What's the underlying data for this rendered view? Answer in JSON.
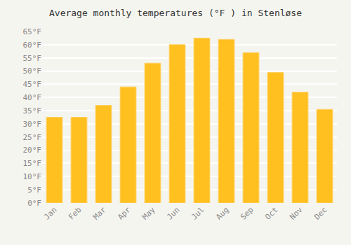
{
  "chart_data": {
    "type": "bar",
    "title": "Average monthly temperatures (°F ) in Stenløse",
    "categories": [
      "Jan",
      "Feb",
      "Mar",
      "Apr",
      "May",
      "Jun",
      "Jul",
      "Aug",
      "Sep",
      "Oct",
      "Nov",
      "Dec"
    ],
    "values": [
      32.5,
      32.5,
      37.0,
      44.0,
      53.0,
      60.0,
      62.5,
      62.0,
      57.0,
      49.5,
      42.0,
      35.5
    ],
    "color": "#FFC020",
    "ylim": [
      0,
      65
    ],
    "yticks": [
      {
        "value": 0,
        "label": "0°F"
      },
      {
        "value": 5,
        "label": "5°F"
      },
      {
        "value": 10,
        "label": "10°F"
      },
      {
        "value": 15,
        "label": "15°F"
      },
      {
        "value": 20,
        "label": "20°F"
      },
      {
        "value": 25,
        "label": "25°F"
      },
      {
        "value": 30,
        "label": "30°F"
      },
      {
        "value": 35,
        "label": "35°F"
      },
      {
        "value": 40,
        "label": "40°F"
      },
      {
        "value": 45,
        "label": "45°F"
      },
      {
        "value": 50,
        "label": "50°F"
      },
      {
        "value": 55,
        "label": "55°F"
      },
      {
        "value": 60,
        "label": "60°F"
      },
      {
        "value": 65,
        "label": "65°F"
      }
    ],
    "grid": true
  }
}
